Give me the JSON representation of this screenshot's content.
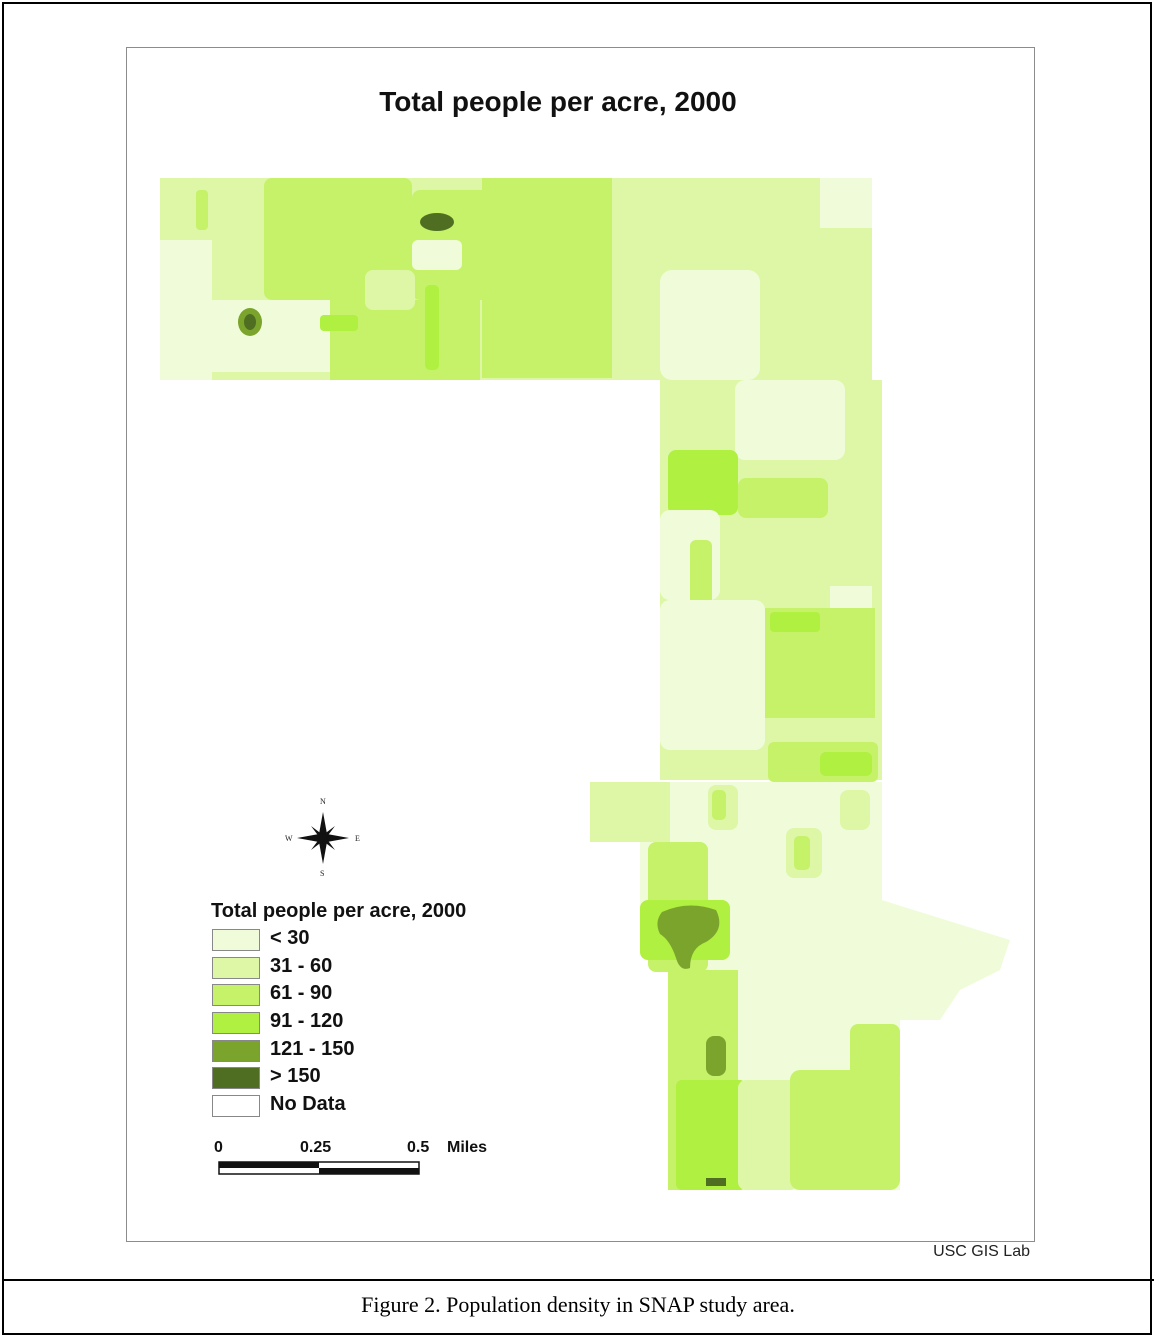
{
  "map": {
    "title": "Total people per acre, 2000",
    "credit": "USC GIS Lab",
    "compass": {
      "n": "N",
      "s": "S",
      "e": "E",
      "w": "W"
    },
    "legend": {
      "title": "Total people per acre, 2000",
      "items": [
        {
          "label": "< 30",
          "color": "#f0fcd9"
        },
        {
          "label": "31 - 60",
          "color": "#ddf7a6"
        },
        {
          "label": "61 - 90",
          "color": "#c6f26a"
        },
        {
          "label": "91 - 120",
          "color": "#b0f040"
        },
        {
          "label": "121 - 150",
          "color": "#7ba42c"
        },
        {
          "label": "> 150",
          "color": "#4f6e21"
        },
        {
          "label": "No Data",
          "color": "#ffffff"
        }
      ]
    },
    "scale_bar": {
      "labels": [
        "0",
        "0.25",
        "0.5"
      ],
      "unit": "Miles"
    }
  },
  "figure": {
    "caption": "Figure 2.  Population density in SNAP study area."
  }
}
